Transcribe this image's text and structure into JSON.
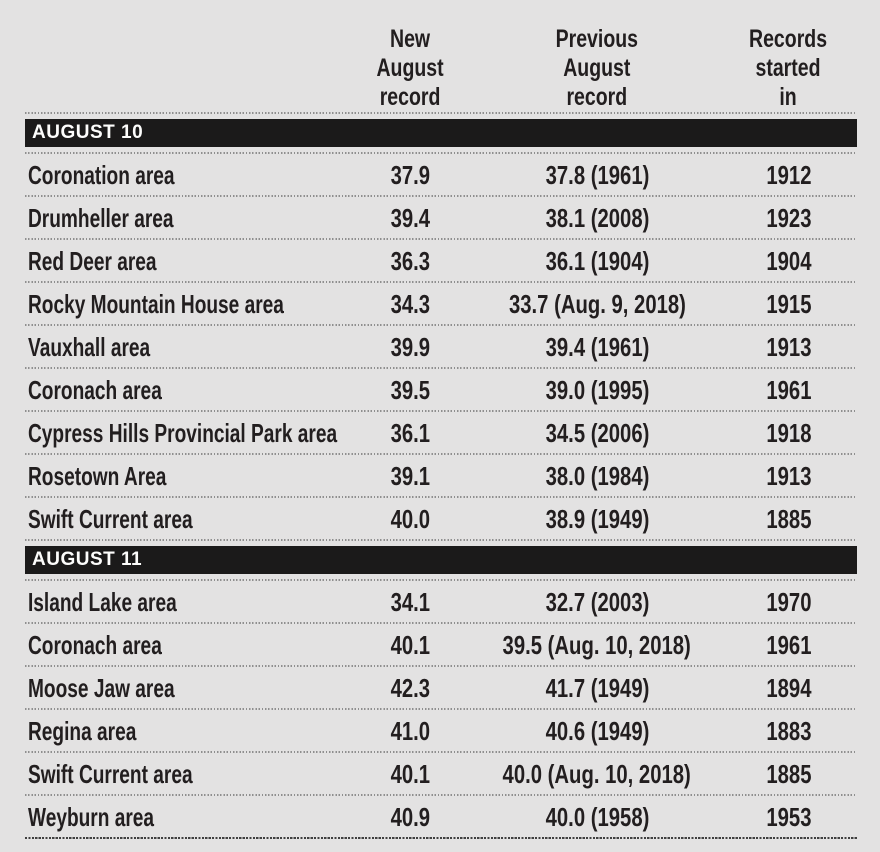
{
  "chart_data": {
    "type": "table",
    "column_headers": [
      "New\nAugust\nrecord",
      "Previous\nAugust\nrecord",
      "Records\nstarted\nin"
    ],
    "sections": [
      {
        "label": "AUGUST 10",
        "rows": [
          {
            "area": "Coronation area",
            "new": "37.9",
            "previous": "37.8 (1961)",
            "started": "1912"
          },
          {
            "area": "Drumheller area",
            "new": "39.4",
            "previous": "38.1 (2008)",
            "started": "1923"
          },
          {
            "area": "Red Deer area",
            "new": "36.3",
            "previous": "36.1 (1904)",
            "started": "1904"
          },
          {
            "area": "Rocky Mountain House area",
            "new": "34.3",
            "previous": "33.7 (Aug. 9, 2018)",
            "started": "1915"
          },
          {
            "area": "Vauxhall area",
            "new": "39.9",
            "previous": "39.4 (1961)",
            "started": "1913"
          },
          {
            "area": "Coronach area",
            "new": "39.5",
            "previous": "39.0 (1995)",
            "started": "1961"
          },
          {
            "area": "Cypress Hills Provincial Park area",
            "new": "36.1",
            "previous": "34.5 (2006)",
            "started": "1918"
          },
          {
            "area": "Rosetown Area",
            "new": "39.1",
            "previous": "38.0 (1984)",
            "started": "1913"
          },
          {
            "area": "Swift Current area",
            "new": "40.0",
            "previous": "38.9 (1949)",
            "started": "1885"
          }
        ]
      },
      {
        "label": "AUGUST 11",
        "rows": [
          {
            "area": "Island Lake area",
            "new": "34.1",
            "previous": "32.7 (2003)",
            "started": "1970"
          },
          {
            "area": "Coronach area",
            "new": "40.1",
            "previous": "39.5 (Aug. 10, 2018)",
            "started": "1961"
          },
          {
            "area": "Moose Jaw area",
            "new": "42.3",
            "previous": "41.7 (1949)",
            "started": "1894"
          },
          {
            "area": "Regina area",
            "new": "41.0",
            "previous": "40.6 (1949)",
            "started": "1883"
          },
          {
            "area": "Swift Current area",
            "new": "40.1",
            "previous": "40.0 (Aug. 10, 2018)",
            "started": "1885"
          },
          {
            "area": "Weyburn area",
            "new": "40.9",
            "previous": "40.0 (1958)",
            "started": "1953"
          }
        ]
      }
    ]
  },
  "colors": {
    "background": "#e3e2e2",
    "bar": "#1b1a1a",
    "bar_text": "#fdfdfc",
    "text": "#221e1f",
    "separator": "#8f8f8f",
    "bottom_separator": "#3f3f3f"
  }
}
